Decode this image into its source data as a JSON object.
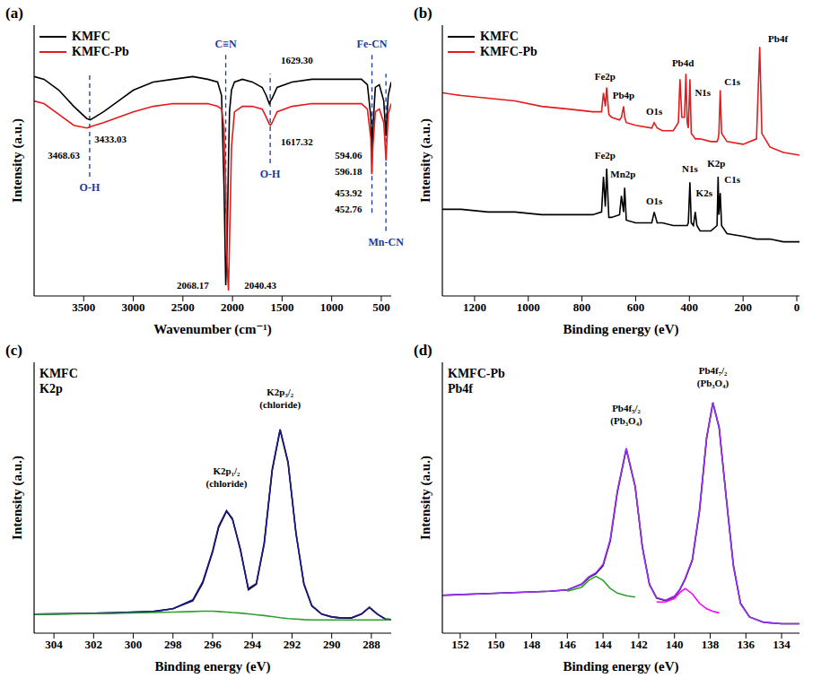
{
  "chart_data": [
    {
      "type": "line",
      "panel_label": "(a)",
      "xlabel": "Wavenumber (cm⁻¹)",
      "ylabel": "Intensity (a.u.)",
      "x": [
        400,
        430,
        452.76,
        453.92,
        475,
        520,
        560,
        585,
        594.06,
        596.18,
        605,
        640,
        700,
        800,
        1000,
        1200,
        1400,
        1550,
        1600,
        1617.32,
        1629.3,
        1660,
        1700,
        1800,
        1900,
        1980,
        2010,
        2030,
        2040.43,
        2055,
        2068.17,
        2085,
        2110,
        2150,
        2250,
        2400,
        2600,
        2800,
        3000,
        3150,
        3300,
        3433.03,
        3468.63,
        3600,
        3750,
        3900,
        4000
      ],
      "xlim": [
        4000,
        400
      ],
      "xticks": [
        3500,
        3000,
        2500,
        2000,
        1500,
        1000,
        500
      ],
      "ylim": [
        0,
        100
      ],
      "yticks": [],
      "tick_labels": "x",
      "legend": "upper left",
      "series": [
        {
          "name": "KMFC",
          "color": "#000000",
          "values": [
            79,
            74,
            60,
            59,
            72,
            78,
            77,
            62,
            52,
            53,
            66,
            78,
            80,
            80,
            80,
            80,
            79,
            77,
            73,
            72,
            71,
            74,
            77,
            79,
            80,
            79,
            76,
            68,
            50,
            18,
            4,
            40,
            74,
            79,
            80,
            81,
            80,
            79,
            76,
            72,
            68,
            65,
            65.5,
            70,
            76,
            80,
            81
          ]
        },
        {
          "name": "KMFC-Pb",
          "color": "#e41a1c",
          "values": [
            71,
            67,
            50,
            51,
            64,
            69,
            68,
            55,
            46,
            45,
            58,
            69,
            71,
            71,
            71,
            71,
            70,
            68,
            64,
            63,
            63.5,
            66,
            69,
            70,
            70,
            68,
            55,
            20,
            2,
            12,
            40,
            62,
            69,
            70,
            71,
            71,
            71,
            70,
            68,
            66,
            64,
            62.5,
            62,
            63,
            67,
            71,
            72
          ]
        }
      ],
      "annotations": [
        {
          "text": "3468.63",
          "x": 3700,
          "y": 52
        },
        {
          "text": "3433.03",
          "x": 3230,
          "y": 58
        },
        {
          "text": "2068.17",
          "x": 2400,
          "y": 4
        },
        {
          "text": "2040.43",
          "x": 1720,
          "y": 4
        },
        {
          "text": "1629.30",
          "x": 1350,
          "y": 87
        },
        {
          "text": "1617.32",
          "x": 1350,
          "y": 57
        },
        {
          "text": "594.06",
          "x": 830,
          "y": 52
        },
        {
          "text": "596.18",
          "x": 830,
          "y": 46
        },
        {
          "text": "453.92",
          "x": 830,
          "y": 38
        },
        {
          "text": "452.76",
          "x": 830,
          "y": 32
        }
      ],
      "bands": [
        {
          "text": "O-H",
          "x": 3440,
          "y": 40
        },
        {
          "text": "C≡N",
          "x": 2068.17,
          "y": 93
        },
        {
          "text": "O-H",
          "x": 1620,
          "y": 45
        },
        {
          "text": "Fe-CN",
          "x": 594,
          "y": 93
        },
        {
          "text": "Mn-CN",
          "x": 453,
          "y": 20
        }
      ]
    },
    {
      "type": "line",
      "panel_label": "(b)",
      "xlabel": "Binding energy (eV)",
      "ylabel": "Intensity (a.u.)",
      "x": [
        -10,
        50,
        100,
        130,
        138,
        143,
        150,
        200,
        260,
        280,
        285,
        290,
        293,
        297,
        320,
        360,
        372,
        378,
        385,
        393,
        398,
        404,
        408,
        413,
        418,
        428,
        435,
        441,
        460,
        500,
        520,
        531,
        540,
        600,
        635,
        641,
        645,
        653,
        660,
        690,
        700,
        708,
        713,
        720,
        727,
        760,
        850,
        950,
        1050,
        1150,
        1250,
        1320
      ],
      "xlim": [
        1320,
        -10
      ],
      "xticks": [
        1200,
        1000,
        800,
        600,
        400,
        200,
        0
      ],
      "ylim": [
        0,
        100
      ],
      "yticks": [],
      "tick_labels": "x",
      "legend": "upper left",
      "series": [
        {
          "name": "KMFC",
          "color": "#000000",
          "values": [
            20,
            20,
            21,
            21,
            21,
            21,
            21,
            22,
            23,
            26,
            38,
            30,
            44,
            26,
            24,
            24,
            26,
            31,
            26,
            27,
            42,
            27,
            26,
            26,
            26,
            26,
            26,
            26,
            26,
            27,
            27,
            31,
            27,
            27,
            28,
            40,
            31,
            37,
            30,
            29,
            29,
            47,
            33,
            44,
            31,
            30,
            30,
            30,
            31,
            31,
            32,
            32
          ]
        },
        {
          "name": "KMFC-Pb",
          "color": "#e41a1c",
          "values": [
            52,
            53,
            55,
            60,
            92,
            78,
            58,
            56,
            57,
            60,
            76,
            60,
            58,
            57,
            57,
            58,
            58,
            58,
            59,
            60,
            80,
            62,
            64,
            82,
            66,
            66,
            80,
            64,
            61,
            61,
            62,
            64,
            62,
            63,
            64,
            66,
            70,
            66,
            65,
            66,
            67,
            77,
            70,
            75,
            68,
            68,
            69,
            70,
            72,
            73,
            74,
            75
          ]
        }
      ],
      "annotations": [
        {
          "text": "Fe2p",
          "x": 714,
          "y": 52
        },
        {
          "text": "Mn2p",
          "x": 647,
          "y": 45
        },
        {
          "text": "O1s",
          "x": 531,
          "y": 35
        },
        {
          "text": "N1s",
          "x": 398,
          "y": 47
        },
        {
          "text": "K2s",
          "x": 345,
          "y": 38
        },
        {
          "text": "K2p",
          "x": 300,
          "y": 49
        },
        {
          "text": "C1s",
          "x": 240,
          "y": 43
        },
        {
          "text": "Fe2p",
          "x": 714,
          "y": 81
        },
        {
          "text": "Pb4p",
          "x": 645,
          "y": 74
        },
        {
          "text": "O1s",
          "x": 531,
          "y": 68
        },
        {
          "text": "Pb4d",
          "x": 424,
          "y": 86
        },
        {
          "text": "N1s",
          "x": 350,
          "y": 75
        },
        {
          "text": "C1s",
          "x": 240,
          "y": 79
        },
        {
          "text": "Pb4f",
          "x": 70,
          "y": 95
        }
      ]
    },
    {
      "type": "line",
      "panel_label": "(c)",
      "title": "KMFC",
      "subtitle": "K2p",
      "xlabel": "Binding energy (eV)",
      "ylabel": "Intensity (a.u.)",
      "x": [
        305,
        303,
        301,
        299,
        298,
        297,
        296.5,
        296,
        295.7,
        295.3,
        295,
        294.6,
        294.2,
        293.8,
        293.4,
        293,
        292.6,
        292.2,
        291.8,
        291.4,
        291,
        290.5,
        290,
        289.5,
        289,
        288.5,
        288.1,
        287.7,
        287.3,
        287
      ],
      "xlim": [
        305,
        287
      ],
      "xticks": [
        304,
        302,
        300,
        298,
        296,
        294,
        292,
        290,
        288
      ],
      "ylim": [
        0,
        100
      ],
      "yticks": [],
      "tick_labels": "x",
      "series": [
        {
          "color": "#000000",
          "values": [
            7,
            7.2,
            7.5,
            8,
            9,
            12,
            18.5,
            30,
            39,
            45,
            42,
            31,
            16,
            18,
            33,
            60,
            75,
            63,
            37,
            18,
            10,
            7,
            6,
            5.6,
            5.6,
            7,
            9.5,
            7,
            5.2,
            5
          ]
        },
        {
          "color": "#1a1a8c",
          "values": [
            7,
            7.2,
            7.5,
            8,
            9,
            12.3,
            19,
            30.5,
            39.5,
            45.3,
            42.3,
            30.5,
            16.5,
            18.3,
            33.5,
            60.5,
            75.3,
            63.2,
            36.8,
            18.3,
            10.2,
            7,
            6,
            5.6,
            5.7,
            7.1,
            9.6,
            7.1,
            5.2,
            5
          ]
        },
        {
          "color": "#2e9e2e",
          "values": [
            7,
            7.1,
            7.3,
            7.6,
            7.8,
            8,
            8.1,
            8.1,
            8,
            7.8,
            7.6,
            7.4,
            7.1,
            6.8,
            6.5,
            6.1,
            5.7,
            5.4,
            5.2,
            5,
            4.9,
            4.9,
            4.9,
            4.9,
            4.9,
            4.9,
            4.9,
            4.9,
            4.9,
            4.9
          ]
        }
      ],
      "annotations": [
        {
          "text": "K2p₁/₂\n(chloride)",
          "x": 295.3,
          "y": 60
        },
        {
          "text": "K2p₃/₂\n(chloride)",
          "x": 292.6,
          "y": 89
        }
      ]
    },
    {
      "type": "line",
      "panel_label": "(d)",
      "title": "KMFC-Pb",
      "subtitle": "Pb4f",
      "xlabel": "Binding energy (eV)",
      "ylabel": "Intensity (a.u.)",
      "x": [
        153,
        151,
        149,
        147,
        146,
        145.2,
        144.8,
        144.4,
        144,
        143.6,
        143.2,
        142.7,
        142.2,
        141.8,
        141.4,
        141,
        140.5,
        140,
        139.7,
        139.4,
        139,
        138.6,
        138.2,
        137.85,
        137.5,
        137.1,
        136.7,
        136.3,
        135.8,
        135,
        134,
        133
      ],
      "xlim": [
        153,
        133
      ],
      "xticks": [
        152,
        150,
        148,
        146,
        144,
        142,
        140,
        138,
        136,
        134
      ],
      "ylim": [
        0,
        100
      ],
      "yticks": [],
      "tick_labels": "x",
      "series": [
        {
          "color": "#000000",
          "values": [
            14,
            14.5,
            15,
            15.5,
            16,
            18,
            20.5,
            22,
            25,
            34,
            52,
            68,
            54,
            32,
            18,
            13,
            12,
            13.5,
            16,
            20,
            27,
            45,
            72,
            85,
            76,
            50,
            25,
            11,
            6,
            4,
            3.5,
            3.5
          ]
        },
        {
          "color": "#9b30ff",
          "values": [
            14,
            14.5,
            15,
            15.5,
            16,
            18.2,
            20.8,
            22.3,
            25.4,
            34.5,
            52.5,
            68.3,
            54.2,
            31.6,
            17.8,
            13.1,
            12.2,
            13.7,
            16.2,
            20.2,
            27.3,
            45.5,
            72.4,
            85.2,
            75.7,
            49.6,
            24.6,
            10.8,
            6,
            4,
            3.5,
            3.5
          ]
        },
        {
          "color": "#2ca02c",
          "values": [
            null,
            null,
            null,
            null,
            15.5,
            17,
            19.5,
            21,
            19.5,
            16.5,
            14.8,
            13.8,
            13.3,
            null,
            null,
            null,
            null,
            null,
            null,
            null,
            null,
            null,
            null,
            null,
            null,
            null,
            null,
            null,
            null,
            null,
            null,
            null
          ]
        },
        {
          "color": "#ff00ff",
          "values": [
            null,
            null,
            null,
            null,
            null,
            null,
            null,
            null,
            null,
            null,
            null,
            null,
            null,
            null,
            null,
            11.5,
            11.5,
            12.8,
            15,
            16.5,
            14.5,
            11,
            9,
            8,
            7.5,
            null,
            null,
            null,
            null,
            null,
            null,
            null
          ]
        }
      ],
      "annotations": [
        {
          "text": "Pb4f₅/₂\n(Pb₃O₄)",
          "x": 142.7,
          "y": 83
        },
        {
          "text": "Pb4f₇/₂\n(Pb₃O₄)",
          "x": 137.85,
          "y": 97
        }
      ]
    }
  ]
}
